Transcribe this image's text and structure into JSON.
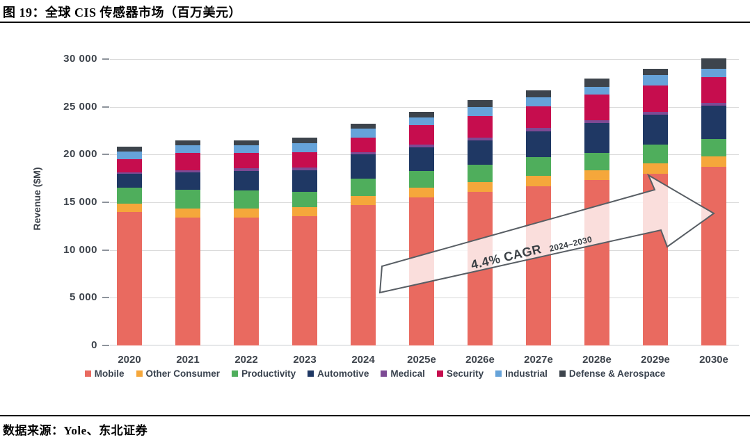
{
  "figure": {
    "title": "图 19：全球 CIS 传感器市场（百万美元）",
    "source": "数据来源：Yole、东北证券"
  },
  "chart_data": {
    "type": "bar",
    "subtype": "stacked-vertical",
    "ylabel": "Revenue ($M)",
    "ylim": [
      0,
      30000
    ],
    "ytick_step": 5000,
    "ytick_labels": [
      "0",
      "5 000",
      "10 000",
      "15 000",
      "20 000",
      "25 000",
      "30 000"
    ],
    "grid": "horizontal",
    "legend_position": "bottom",
    "categories": [
      "2020",
      "2021",
      "2022",
      "2023",
      "2024",
      "2025e",
      "2026e",
      "2027e",
      "2028e",
      "2029e",
      "2030e"
    ],
    "series": [
      {
        "name": "Mobile",
        "color": "#E96A60",
        "values": [
          14000,
          13400,
          13400,
          13550,
          14700,
          15500,
          16100,
          16700,
          17300,
          18000,
          18700
        ]
      },
      {
        "name": "Other Consumer",
        "color": "#F5A73B",
        "values": [
          850,
          950,
          950,
          950,
          950,
          1000,
          1000,
          1050,
          1050,
          1050,
          1100
        ]
      },
      {
        "name": "Productivity",
        "color": "#4FAE5C",
        "values": [
          1700,
          1950,
          1900,
          1600,
          1800,
          1800,
          1850,
          1950,
          1850,
          2000,
          1800
        ]
      },
      {
        "name": "Automotive",
        "color": "#1F3864",
        "values": [
          1450,
          1800,
          2050,
          2250,
          2550,
          2450,
          2500,
          2750,
          3100,
          3100,
          3500
        ]
      },
      {
        "name": "Medical",
        "color": "#7D4A94",
        "values": [
          150,
          250,
          250,
          300,
          250,
          300,
          300,
          320,
          320,
          300,
          320
        ]
      },
      {
        "name": "Security",
        "color": "#C60D4E",
        "values": [
          1350,
          1800,
          1600,
          1630,
          1500,
          2000,
          2300,
          2300,
          2650,
          2750,
          2700
        ]
      },
      {
        "name": "Industrial",
        "color": "#66A3D9",
        "values": [
          800,
          800,
          850,
          900,
          950,
          850,
          950,
          900,
          850,
          1100,
          850
        ]
      },
      {
        "name": "Defense & Aerospace",
        "color": "#3D444C",
        "values": [
          550,
          550,
          500,
          620,
          500,
          600,
          680,
          780,
          850,
          700,
          1100
        ]
      }
    ],
    "totals": [
      20850,
      21500,
      21500,
      21800,
      23200,
      24500,
      25680,
      26750,
      27970,
      29000,
      30070
    ],
    "annotation": {
      "text": "4.4% CAGR",
      "subtext": "2024–2030"
    }
  }
}
